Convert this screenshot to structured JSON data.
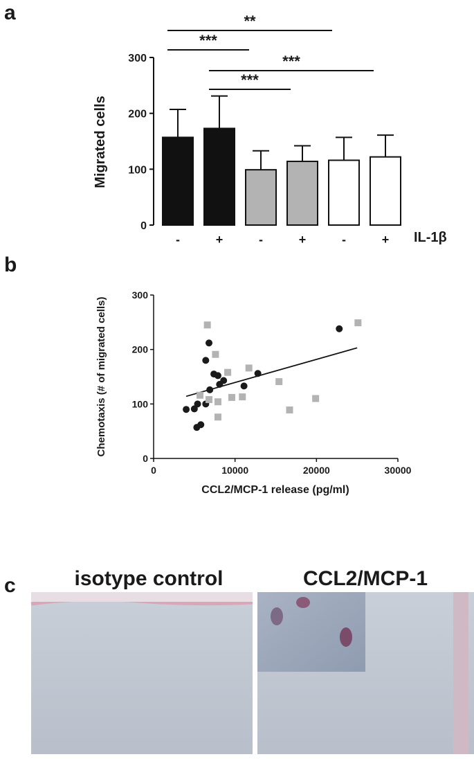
{
  "panel_labels": [
    "a",
    "b",
    "c"
  ],
  "images": [
    {
      "title": "isotype control"
    },
    {
      "title": "CCL2/MCP-1"
    }
  ],
  "chart_data": [
    {
      "type": "bar",
      "y_label": "Migrated cells",
      "x_label": "IL-1β",
      "categories": [
        "-",
        "+",
        "-",
        "+",
        "-",
        "+"
      ],
      "values": [
        157,
        173,
        99,
        114,
        116,
        122
      ],
      "errors": [
        50,
        58,
        34,
        28,
        41,
        39
      ],
      "colors": [
        "#111111",
        "#111111",
        "#b3b3b3",
        "#b3b3b3",
        "#ffffff",
        "#ffffff"
      ],
      "ylim": [
        0,
        300
      ],
      "yticks": [
        0,
        100,
        200,
        300
      ],
      "significance": [
        {
          "from": 0,
          "to": 4,
          "label": "**"
        },
        {
          "from": 0,
          "to": 2,
          "label": "***"
        },
        {
          "from": 1,
          "to": 5,
          "label": "***"
        },
        {
          "from": 1,
          "to": 3,
          "label": "***"
        }
      ]
    },
    {
      "type": "scatter",
      "x_label": "CCL2/MCP-1 release (pg/ml)",
      "y_label": "Chemotaxis (# of migrated cells)",
      "xlim": [
        0,
        30000
      ],
      "xticks": [
        0,
        10000,
        20000,
        30000
      ],
      "ylim": [
        0,
        300
      ],
      "yticks": [
        0,
        100,
        200,
        300
      ],
      "series": [
        {
          "color": "#1a1a1a",
          "marker": "circle",
          "x": [
            4000,
            5000,
            5400,
            5300,
            5800,
            6400,
            6400,
            6800,
            6900,
            7400,
            7900,
            8100,
            8600,
            11100,
            12800,
            22800
          ],
          "values": [
            90,
            91,
            100,
            57,
            62,
            100,
            180,
            212,
            126,
            155,
            152,
            136,
            143,
            133,
            156,
            238
          ]
        },
        {
          "color": "#b3b3b3",
          "marker": "square",
          "x": [
            6600,
            7600,
            5700,
            6800,
            7900,
            7900,
            9100,
            9600,
            10900,
            11700,
            15400,
            16700,
            19900,
            25100
          ],
          "values": [
            245,
            191,
            116,
            108,
            104,
            76,
            158,
            112,
            113,
            166,
            141,
            89,
            110,
            249
          ]
        }
      ],
      "fit_line": {
        "x": [
          4000,
          25000
        ],
        "y": [
          114,
          203
        ]
      }
    }
  ]
}
